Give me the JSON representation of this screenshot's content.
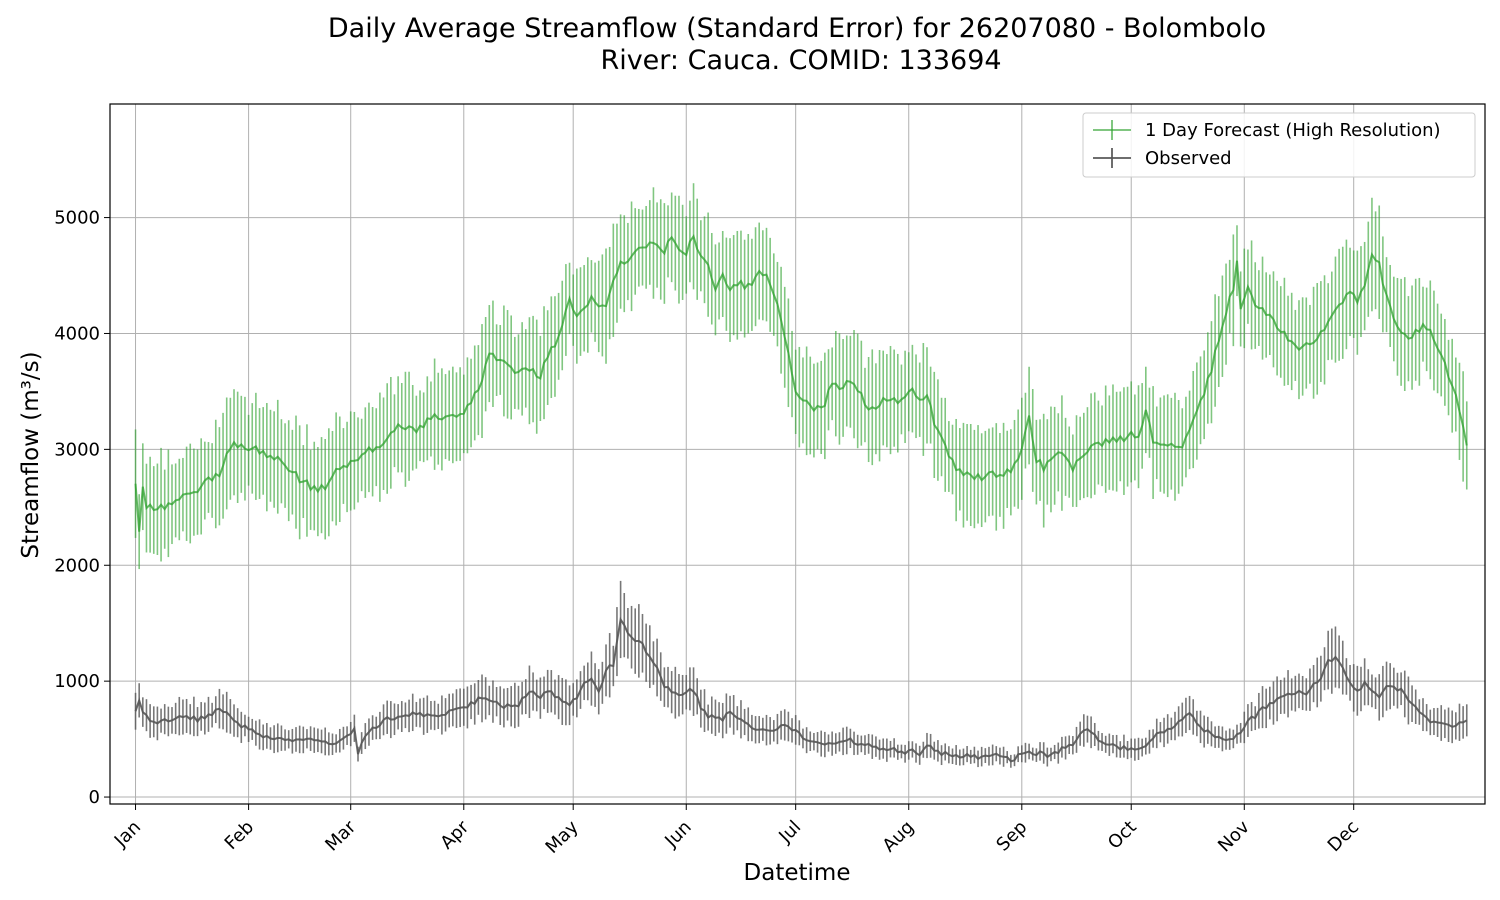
{
  "chart_data": {
    "type": "line",
    "title_line1": "Daily Average Streamflow (Standard Error) for 26207080 - Bolombolo",
    "title_line2": "River: Cauca. COMID: 133694",
    "xlabel": "Datetime",
    "ylabel": "Streamflow (m³/s)",
    "ylim": [
      -60,
      5980
    ],
    "xlim": [
      -6,
      371
    ],
    "grid": true,
    "legend_position": "top-right",
    "x_tick_labels": [
      "Jan",
      "Feb",
      "Mar",
      "Apr",
      "May",
      "Jun",
      "Jul",
      "Aug",
      "Sep",
      "Oct",
      "Nov",
      "Dec"
    ],
    "x_tick_days": [
      1,
      32,
      60,
      91,
      121,
      152,
      182,
      213,
      244,
      274,
      305,
      335
    ],
    "y_ticks": [
      0,
      1000,
      2000,
      3000,
      4000,
      5000
    ],
    "series": [
      {
        "name": "1 Day Forecast (High Resolution)",
        "color": "#2ca02c",
        "mean_keypoints": [
          [
            1,
            2700
          ],
          [
            2,
            2300
          ],
          [
            3,
            2650
          ],
          [
            4,
            2520
          ],
          [
            8,
            2500
          ],
          [
            12,
            2560
          ],
          [
            16,
            2600
          ],
          [
            20,
            2700
          ],
          [
            24,
            2800
          ],
          [
            26,
            2950
          ],
          [
            28,
            3050
          ],
          [
            32,
            3020
          ],
          [
            36,
            2980
          ],
          [
            40,
            2920
          ],
          [
            44,
            2800
          ],
          [
            48,
            2700
          ],
          [
            50,
            2650
          ],
          [
            54,
            2700
          ],
          [
            56,
            2800
          ],
          [
            58,
            2850
          ],
          [
            60,
            2880
          ],
          [
            61,
            2880
          ],
          [
            64,
            3000
          ],
          [
            66,
            2980
          ],
          [
            70,
            3100
          ],
          [
            74,
            3220
          ],
          [
            76,
            3180
          ],
          [
            78,
            3160
          ],
          [
            82,
            3260
          ],
          [
            86,
            3300
          ],
          [
            90,
            3300
          ],
          [
            93,
            3400
          ],
          [
            96,
            3600
          ],
          [
            98,
            3820
          ],
          [
            100,
            3760
          ],
          [
            104,
            3720
          ],
          [
            106,
            3650
          ],
          [
            108,
            3700
          ],
          [
            112,
            3640
          ],
          [
            114,
            3800
          ],
          [
            117,
            3950
          ],
          [
            120,
            4300
          ],
          [
            122,
            4150
          ],
          [
            124,
            4200
          ],
          [
            126,
            4300
          ],
          [
            128,
            4200
          ],
          [
            130,
            4250
          ],
          [
            134,
            4600
          ],
          [
            136,
            4650
          ],
          [
            140,
            4750
          ],
          [
            144,
            4760
          ],
          [
            146,
            4700
          ],
          [
            148,
            4820
          ],
          [
            150,
            4750
          ],
          [
            152,
            4700
          ],
          [
            154,
            4850
          ],
          [
            156,
            4660
          ],
          [
            158,
            4600
          ],
          [
            160,
            4400
          ],
          [
            162,
            4500
          ],
          [
            164,
            4400
          ],
          [
            166,
            4420
          ],
          [
            170,
            4420
          ],
          [
            172,
            4550
          ],
          [
            174,
            4500
          ],
          [
            176,
            4350
          ],
          [
            178,
            4100
          ],
          [
            180,
            3800
          ],
          [
            182,
            3500
          ],
          [
            186,
            3380
          ],
          [
            188,
            3350
          ],
          [
            190,
            3400
          ],
          [
            192,
            3600
          ],
          [
            194,
            3500
          ],
          [
            196,
            3620
          ],
          [
            198,
            3580
          ],
          [
            200,
            3450
          ],
          [
            202,
            3350
          ],
          [
            204,
            3320
          ],
          [
            206,
            3420
          ],
          [
            208,
            3440
          ],
          [
            210,
            3400
          ],
          [
            212,
            3480
          ],
          [
            214,
            3500
          ],
          [
            216,
            3420
          ],
          [
            218,
            3500
          ],
          [
            220,
            3200
          ],
          [
            222,
            3100
          ],
          [
            224,
            2950
          ],
          [
            226,
            2850
          ],
          [
            228,
            2800
          ],
          [
            230,
            2750
          ],
          [
            232,
            2750
          ],
          [
            236,
            2800
          ],
          [
            238,
            2750
          ],
          [
            240,
            2800
          ],
          [
            242,
            2850
          ],
          [
            244,
            3000
          ],
          [
            246,
            3300
          ],
          [
            248,
            2900
          ],
          [
            250,
            2850
          ],
          [
            252,
            2900
          ],
          [
            254,
            3000
          ],
          [
            256,
            2950
          ],
          [
            258,
            2850
          ],
          [
            260,
            2900
          ],
          [
            262,
            3000
          ],
          [
            264,
            3050
          ],
          [
            268,
            3080
          ],
          [
            272,
            3100
          ],
          [
            274,
            3120
          ],
          [
            276,
            3100
          ],
          [
            278,
            3350
          ],
          [
            280,
            3050
          ],
          [
            284,
            3050
          ],
          [
            286,
            3000
          ],
          [
            288,
            3050
          ],
          [
            292,
            3300
          ],
          [
            294,
            3500
          ],
          [
            296,
            3700
          ],
          [
            298,
            3950
          ],
          [
            300,
            4200
          ],
          [
            302,
            4400
          ],
          [
            303,
            4650
          ],
          [
            304,
            4200
          ],
          [
            306,
            4400
          ],
          [
            308,
            4250
          ],
          [
            312,
            4150
          ],
          [
            316,
            4000
          ],
          [
            318,
            3950
          ],
          [
            320,
            3850
          ],
          [
            324,
            3950
          ],
          [
            326,
            4000
          ],
          [
            328,
            4100
          ],
          [
            330,
            4200
          ],
          [
            334,
            4350
          ],
          [
            336,
            4300
          ],
          [
            338,
            4400
          ],
          [
            340,
            4650
          ],
          [
            342,
            4600
          ],
          [
            344,
            4300
          ],
          [
            346,
            4150
          ],
          [
            348,
            4000
          ],
          [
            350,
            3950
          ],
          [
            354,
            4050
          ],
          [
            356,
            4000
          ],
          [
            358,
            3900
          ],
          [
            360,
            3750
          ],
          [
            362,
            3550
          ],
          [
            364,
            3350
          ],
          [
            366,
            3050
          ]
        ],
        "error_scale": 400
      },
      {
        "name": "Observed",
        "color": "#555555",
        "mean_keypoints": [
          [
            1,
            750
          ],
          [
            2,
            830
          ],
          [
            3,
            720
          ],
          [
            6,
            650
          ],
          [
            10,
            660
          ],
          [
            14,
            700
          ],
          [
            18,
            670
          ],
          [
            22,
            720
          ],
          [
            24,
            770
          ],
          [
            26,
            730
          ],
          [
            30,
            620
          ],
          [
            34,
            560
          ],
          [
            38,
            510
          ],
          [
            42,
            490
          ],
          [
            46,
            500
          ],
          [
            50,
            490
          ],
          [
            54,
            460
          ],
          [
            58,
            500
          ],
          [
            60,
            560
          ],
          [
            61,
            600
          ],
          [
            62,
            380
          ],
          [
            64,
            540
          ],
          [
            66,
            600
          ],
          [
            68,
            630
          ],
          [
            70,
            680
          ],
          [
            74,
            700
          ],
          [
            78,
            720
          ],
          [
            82,
            700
          ],
          [
            86,
            720
          ],
          [
            90,
            760
          ],
          [
            94,
            820
          ],
          [
            96,
            860
          ],
          [
            100,
            820
          ],
          [
            102,
            780
          ],
          [
            106,
            800
          ],
          [
            108,
            880
          ],
          [
            110,
            900
          ],
          [
            112,
            860
          ],
          [
            114,
            920
          ],
          [
            116,
            880
          ],
          [
            118,
            830
          ],
          [
            120,
            800
          ],
          [
            122,
            860
          ],
          [
            124,
            980
          ],
          [
            126,
            1020
          ],
          [
            128,
            900
          ],
          [
            130,
            1100
          ],
          [
            132,
            1150
          ],
          [
            134,
            1550
          ],
          [
            136,
            1400
          ],
          [
            138,
            1350
          ],
          [
            140,
            1320
          ],
          [
            142,
            1200
          ],
          [
            144,
            1100
          ],
          [
            146,
            960
          ],
          [
            148,
            900
          ],
          [
            150,
            870
          ],
          [
            152,
            920
          ],
          [
            154,
            920
          ],
          [
            156,
            780
          ],
          [
            158,
            700
          ],
          [
            162,
            670
          ],
          [
            164,
            740
          ],
          [
            166,
            700
          ],
          [
            168,
            640
          ],
          [
            170,
            580
          ],
          [
            174,
            560
          ],
          [
            178,
            620
          ],
          [
            180,
            600
          ],
          [
            182,
            570
          ],
          [
            184,
            520
          ],
          [
            186,
            470
          ],
          [
            190,
            440
          ],
          [
            194,
            470
          ],
          [
            196,
            500
          ],
          [
            198,
            480
          ],
          [
            202,
            440
          ],
          [
            206,
            420
          ],
          [
            210,
            400
          ],
          [
            212,
            380
          ],
          [
            214,
            420
          ],
          [
            216,
            380
          ],
          [
            218,
            450
          ],
          [
            220,
            420
          ],
          [
            222,
            380
          ],
          [
            226,
            360
          ],
          [
            230,
            350
          ],
          [
            234,
            340
          ],
          [
            236,
            380
          ],
          [
            238,
            350
          ],
          [
            240,
            330
          ],
          [
            242,
            320
          ],
          [
            244,
            380
          ],
          [
            246,
            400
          ],
          [
            248,
            380
          ],
          [
            250,
            370
          ],
          [
            252,
            350
          ],
          [
            254,
            390
          ],
          [
            256,
            430
          ],
          [
            258,
            450
          ],
          [
            260,
            560
          ],
          [
            262,
            600
          ],
          [
            264,
            520
          ],
          [
            266,
            480
          ],
          [
            268,
            460
          ],
          [
            272,
            420
          ],
          [
            276,
            400
          ],
          [
            278,
            450
          ],
          [
            280,
            500
          ],
          [
            282,
            560
          ],
          [
            284,
            580
          ],
          [
            286,
            620
          ],
          [
            288,
            680
          ],
          [
            290,
            720
          ],
          [
            292,
            640
          ],
          [
            294,
            580
          ],
          [
            296,
            540
          ],
          [
            298,
            520
          ],
          [
            300,
            500
          ],
          [
            302,
            520
          ],
          [
            304,
            560
          ],
          [
            306,
            680
          ],
          [
            308,
            700
          ],
          [
            310,
            760
          ],
          [
            312,
            800
          ],
          [
            314,
            860
          ],
          [
            316,
            880
          ],
          [
            318,
            900
          ],
          [
            320,
            920
          ],
          [
            322,
            900
          ],
          [
            324,
            960
          ],
          [
            326,
            1020
          ],
          [
            328,
            1180
          ],
          [
            330,
            1200
          ],
          [
            332,
            1120
          ],
          [
            334,
            1000
          ],
          [
            336,
            920
          ],
          [
            338,
            980
          ],
          [
            340,
            900
          ],
          [
            342,
            880
          ],
          [
            344,
            960
          ],
          [
            346,
            940
          ],
          [
            348,
            920
          ],
          [
            350,
            820
          ],
          [
            352,
            760
          ],
          [
            354,
            700
          ],
          [
            356,
            660
          ],
          [
            358,
            640
          ],
          [
            360,
            620
          ],
          [
            362,
            600
          ],
          [
            364,
            640
          ],
          [
            366,
            650
          ]
        ],
        "error_scale": 180
      }
    ]
  }
}
